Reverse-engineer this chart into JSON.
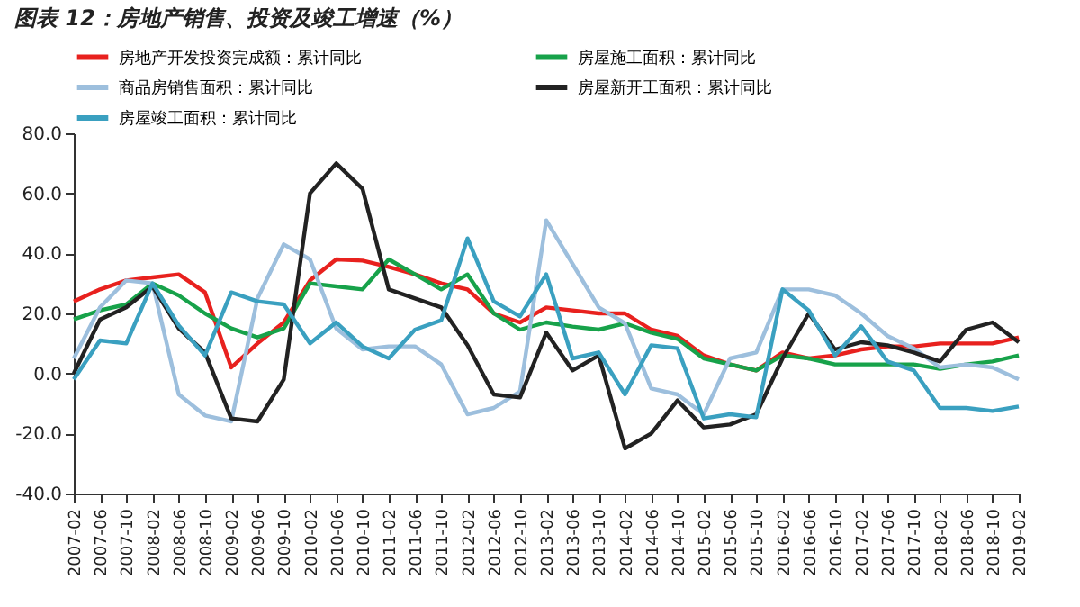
{
  "chart_data": {
    "type": "line",
    "title": "图表 12：房地产销售、投资及竣工增速（%）",
    "categories": [
      "2007-02",
      "2007-06",
      "2007-10",
      "2008-02",
      "2008-06",
      "2008-10",
      "2009-02",
      "2009-06",
      "2009-10",
      "2010-02",
      "2010-06",
      "2010-10",
      "2011-02",
      "2011-06",
      "2011-10",
      "2012-02",
      "2012-06",
      "2012-10",
      "2013-02",
      "2013-06",
      "2013-10",
      "2014-02",
      "2014-06",
      "2014-10",
      "2015-02",
      "2015-06",
      "2015-10",
      "2016-02",
      "2016-06",
      "2016-10",
      "2017-02",
      "2017-06",
      "2017-10",
      "2018-02",
      "2018-06",
      "2018-10",
      "2019-02"
    ],
    "series": [
      {
        "name": "房地产开发投资完成额：累计同比",
        "color": "#e8211e",
        "values": [
          24,
          28,
          31,
          32,
          33,
          27,
          2,
          10,
          17,
          31,
          38,
          37.6,
          35.5,
          33,
          30,
          28,
          20,
          17,
          22,
          21,
          20,
          20,
          14.6,
          12.5,
          6,
          3,
          1,
          7,
          5,
          6,
          8,
          9,
          9,
          10,
          10,
          10,
          12
        ]
      },
      {
        "name": "房屋施工面积：累计同比",
        "color": "#17a24a",
        "values": [
          18,
          21,
          23,
          30,
          26,
          20,
          15,
          12,
          15,
          30,
          29,
          28,
          38,
          33,
          28,
          33,
          20,
          14.6,
          17,
          15.6,
          14.6,
          16.7,
          13.6,
          11.5,
          5,
          3,
          1,
          6,
          5,
          3,
          3,
          3,
          3,
          1.5,
          3,
          4,
          6
        ]
      },
      {
        "name": "商品房销售面积：累计同比",
        "color": "#9dbfdd",
        "values": [
          5,
          22,
          31,
          30,
          -7,
          -14,
          -16,
          25,
          43,
          38,
          15,
          8,
          9,
          9,
          3,
          -13.6,
          -11.5,
          -6,
          51,
          36.5,
          22,
          16.7,
          -5,
          -7,
          -13.6,
          5,
          7,
          28,
          28,
          26,
          20,
          12.5,
          8.4,
          2,
          3,
          2,
          -2
        ]
      },
      {
        "name": "房屋新开工面积：累计同比",
        "color": "#222222",
        "values": [
          0,
          18,
          22,
          29,
          15,
          7,
          -15,
          -16,
          -2,
          60,
          70,
          61.5,
          28,
          25,
          22,
          9.4,
          -7,
          -8,
          13.6,
          1,
          6,
          -25,
          -20,
          -9,
          -18,
          -17,
          -13.6,
          5,
          20,
          8,
          10.4,
          9.4,
          7,
          4,
          14.6,
          17,
          10.4
        ]
      },
      {
        "name": "房屋竣工面积：累计同比",
        "color": "#3aa0c0",
        "values": [
          -2,
          11,
          10,
          30,
          16,
          6,
          27,
          24,
          23,
          10,
          17,
          9,
          5,
          14.6,
          17.7,
          45,
          24,
          19,
          33,
          5,
          7,
          -7,
          9.4,
          8.4,
          -15,
          -13.6,
          -14.6,
          28,
          21,
          6,
          15.7,
          4,
          1,
          -11.5,
          -11.5,
          -12.5,
          -11
        ]
      }
    ],
    "ylim": [
      -40,
      80
    ],
    "yticks": [
      {
        "value": -40,
        "label": "-40.0"
      },
      {
        "value": -20,
        "label": "-20.0"
      },
      {
        "value": 0,
        "label": "0.0"
      },
      {
        "value": 20,
        "label": "20.0"
      },
      {
        "value": 40,
        "label": "40.0"
      },
      {
        "value": 60,
        "label": "60.0"
      },
      {
        "value": 80,
        "label": "80.0"
      }
    ],
    "legend": "top",
    "grid": false,
    "marker": "none",
    "line_style": "solid"
  }
}
